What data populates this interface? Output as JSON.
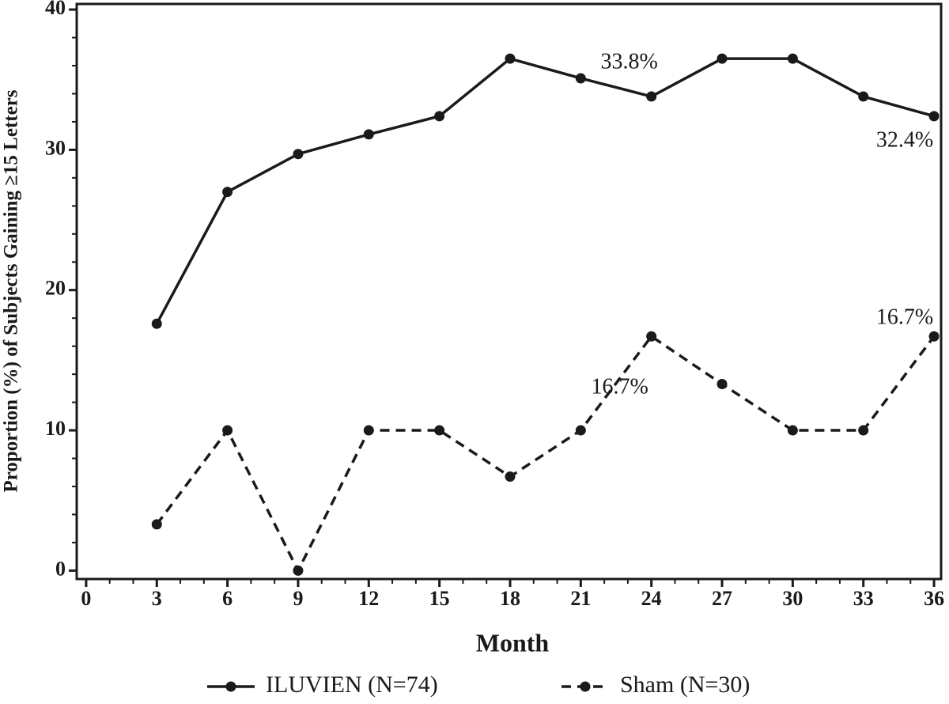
{
  "chart_data": {
    "type": "line",
    "x_label": "Month",
    "y_label": "Proportion (%) of Subjects Gaining ≥15 Letters",
    "x": [
      3,
      6,
      9,
      12,
      15,
      18,
      21,
      24,
      27,
      30,
      33,
      36
    ],
    "series": [
      {
        "name": "ILUVIEN (N=74)",
        "color": "#1a1a1a",
        "line_style": "solid",
        "values": [
          17.6,
          27.0,
          29.7,
          31.1,
          32.4,
          36.5,
          35.1,
          33.8,
          36.5,
          36.5,
          33.8,
          32.4
        ],
        "value_labels": [
          null,
          null,
          null,
          null,
          null,
          null,
          null,
          "33.8%",
          null,
          null,
          null,
          "32.4%"
        ]
      },
      {
        "name": "Sham (N=30)",
        "color": "#1a1a1a",
        "line_style": "dashed",
        "values": [
          3.3,
          10,
          0,
          10,
          10,
          6.7,
          10,
          16.7,
          13.3,
          10,
          10,
          16.7
        ],
        "value_labels": [
          null,
          null,
          null,
          null,
          null,
          null,
          null,
          "16.7%",
          null,
          null,
          null,
          "16.7%"
        ]
      }
    ],
    "xlim": [
      -0.4,
      36.3
    ],
    "xticks": [
      0,
      3,
      6,
      9,
      12,
      15,
      18,
      21,
      24,
      27,
      30,
      33,
      36
    ],
    "ylim": [
      -0.6,
      40.4
    ],
    "yticks": [
      0,
      10,
      20,
      30,
      40
    ],
    "grid": false,
    "legend": "bottom"
  }
}
